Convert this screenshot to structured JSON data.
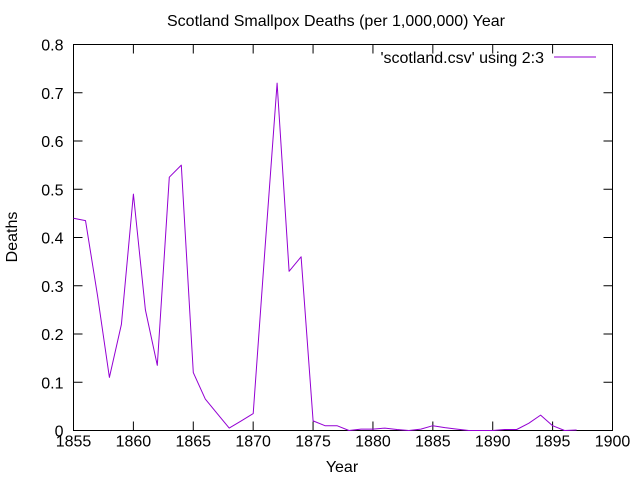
{
  "chart_data": {
    "type": "line",
    "title": "Scotland Smallpox Deaths (per 1,000,000) Year",
    "xlabel": "Year",
    "ylabel": "Deaths",
    "xlim": [
      1855,
      1900
    ],
    "ylim": [
      0,
      0.8
    ],
    "xticks": [
      1855,
      1860,
      1865,
      1870,
      1875,
      1880,
      1885,
      1890,
      1895,
      1900
    ],
    "yticks": [
      0,
      0.1,
      0.2,
      0.3,
      0.4,
      0.5,
      0.6,
      0.7,
      0.8
    ],
    "ytick_labels": [
      "0",
      "0.1",
      "0.2",
      "0.3",
      "0.4",
      "0.5",
      "0.6",
      "0.7",
      "0.8"
    ],
    "grid": false,
    "legend_position": "top-right",
    "colors": {
      "series": "#9400d3",
      "axes": "#000000"
    },
    "series": [
      {
        "name": "'scotland.csv' using 2:3",
        "x": [
          1855,
          1856,
          1857,
          1858,
          1859,
          1860,
          1861,
          1862,
          1863,
          1864,
          1865,
          1866,
          1867,
          1868,
          1869,
          1870,
          1871,
          1872,
          1873,
          1874,
          1875,
          1876,
          1877,
          1878,
          1879,
          1880,
          1881,
          1882,
          1883,
          1884,
          1885,
          1886,
          1887,
          1888,
          1889,
          1890,
          1891,
          1892,
          1893,
          1894,
          1895,
          1896,
          1897
        ],
        "y": [
          0.44,
          0.435,
          0.28,
          0.11,
          0.22,
          0.49,
          0.25,
          0.135,
          0.525,
          0.55,
          0.12,
          0.065,
          0.035,
          0.005,
          0.02,
          0.035,
          0.38,
          0.72,
          0.33,
          0.36,
          0.02,
          0.01,
          0.01,
          0.0,
          0.003,
          0.003,
          0.005,
          0.002,
          0.0,
          0.003,
          0.01,
          0.006,
          0.003,
          0.0,
          0.0,
          0.0,
          0.002,
          0.002,
          0.015,
          0.032,
          0.01,
          0.0,
          0.001
        ]
      }
    ]
  }
}
